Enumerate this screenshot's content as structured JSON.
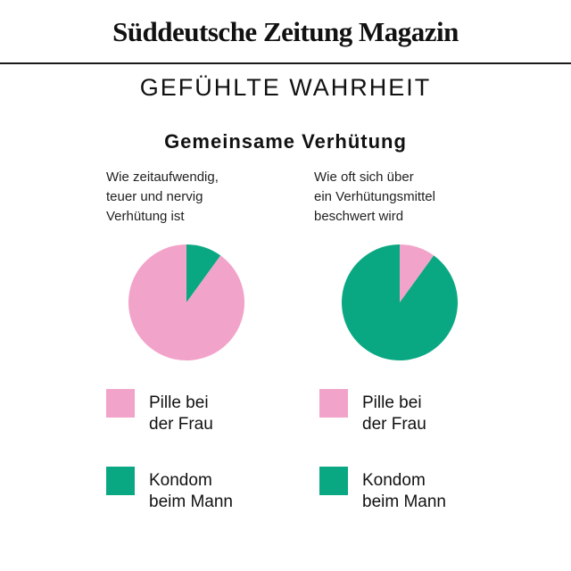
{
  "masthead": "Süddeutsche Zeitung Magazin",
  "kicker": "GEFÜHLTE WAHRHEIT",
  "headline": "Gemeinsame Verhütung",
  "colors": {
    "pink": "#f2a3c9",
    "green": "#0aa882",
    "rule": "#1a1a1a"
  },
  "chart_data": [
    {
      "type": "pie",
      "title": "Wie zeitaufwendig,\nteuer und nervig\nVerhütung ist",
      "slices": [
        {
          "label": "Kondom\nbeim Mann",
          "value": 10,
          "color": "#0aa882"
        },
        {
          "label": "Pille bei\nder Frau",
          "value": 90,
          "color": "#f2a3c9"
        }
      ],
      "legend": [
        "Pille bei\nder Frau",
        "Kondom\nbeim Mann"
      ],
      "legend_placement": "bottom"
    },
    {
      "type": "pie",
      "title": "Wie oft sich über\nein Verhütungsmittel\nbeschwert wird",
      "slices": [
        {
          "label": "Pille bei\nder Frau",
          "value": 10,
          "color": "#f2a3c9"
        },
        {
          "label": "Kondom\nbeim Mann",
          "value": 90,
          "color": "#0aa882"
        }
      ],
      "legend": [
        "Pille bei\nder Frau",
        "Kondom\nbeim Mann"
      ],
      "legend_placement": "bottom"
    }
  ]
}
